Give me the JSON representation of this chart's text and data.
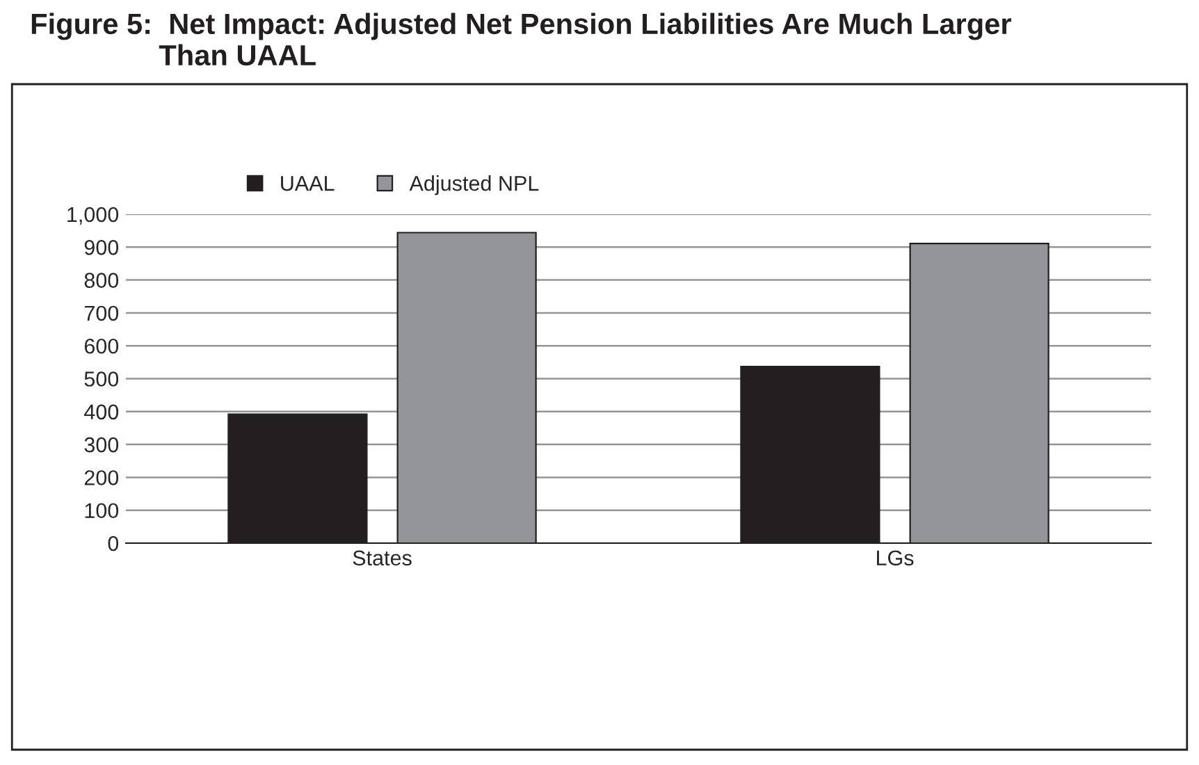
{
  "chart_data": {
    "type": "bar",
    "title": "Figure 5:  Net Impact: Adjusted Net Pension Liabilities Are Much Larger\n                Than UAAL",
    "categories": [
      "States",
      "LGs"
    ],
    "series": [
      {
        "name": "UAAL",
        "color": "#231f20",
        "values": [
          392,
          537
        ]
      },
      {
        "name": "Adjusted NPL",
        "color": "#939598",
        "values": [
          944,
          911
        ]
      }
    ],
    "ylim": [
      0,
      1000
    ],
    "yticks": [
      0,
      100,
      200,
      300,
      400,
      500,
      600,
      700,
      800,
      900,
      {
        "value": 1000,
        "label": "1,000"
      }
    ],
    "grid": "y",
    "legend": "top"
  }
}
